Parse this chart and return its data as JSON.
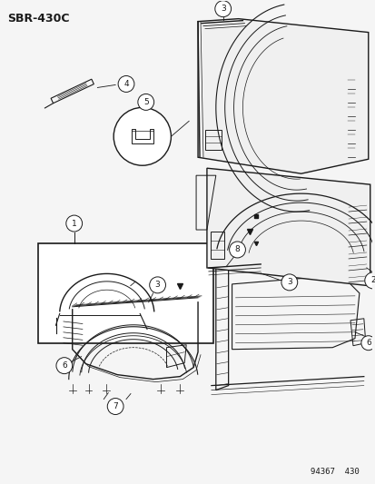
{
  "title": "SBR-430C",
  "background_color": "#f5f5f5",
  "line_color": "#1a1a1a",
  "footer": "94367  430",
  "figsize": [
    4.14,
    5.33
  ],
  "dpi": 100,
  "title_fontsize": 9,
  "label_fontsize": 7,
  "label_circle_r": 0.018
}
